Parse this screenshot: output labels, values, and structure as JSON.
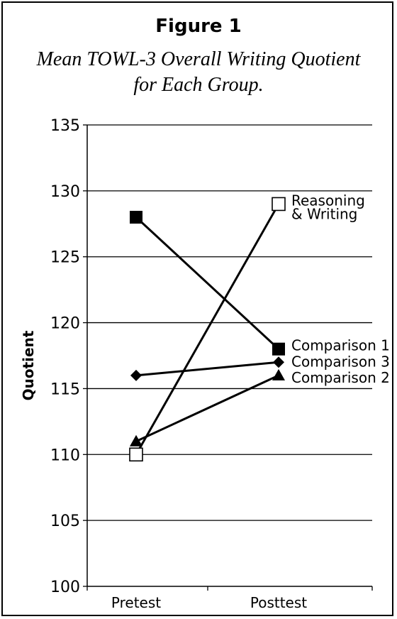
{
  "figure": {
    "label": "Figure 1",
    "subtitle_line1": "Mean TOWL-3 Overall Writing Quotient",
    "subtitle_line2": "for Each Group."
  },
  "chart_data": {
    "type": "line",
    "title": "Figure 1",
    "subtitle": "Mean TOWL-3 Overall Writing Quotient for Each Group.",
    "xlabel": "",
    "ylabel": "Quotient",
    "categories": [
      "Pretest",
      "Posttest"
    ],
    "ylim": [
      100,
      135
    ],
    "yticks": [
      100,
      105,
      110,
      115,
      120,
      125,
      130,
      135
    ],
    "grid": true,
    "legend": "labels at line ends (right)",
    "series": [
      {
        "name": "Comparison 1",
        "marker": "filled-square",
        "values": [
          128,
          118
        ]
      },
      {
        "name": "Reasoning & Writing",
        "marker": "open-square",
        "values": [
          110,
          129
        ]
      },
      {
        "name": "Comparison 3",
        "marker": "filled-diamond",
        "values": [
          116,
          117
        ]
      },
      {
        "name": "Comparison 2",
        "marker": "filled-triangle",
        "values": [
          111,
          116
        ]
      }
    ]
  }
}
